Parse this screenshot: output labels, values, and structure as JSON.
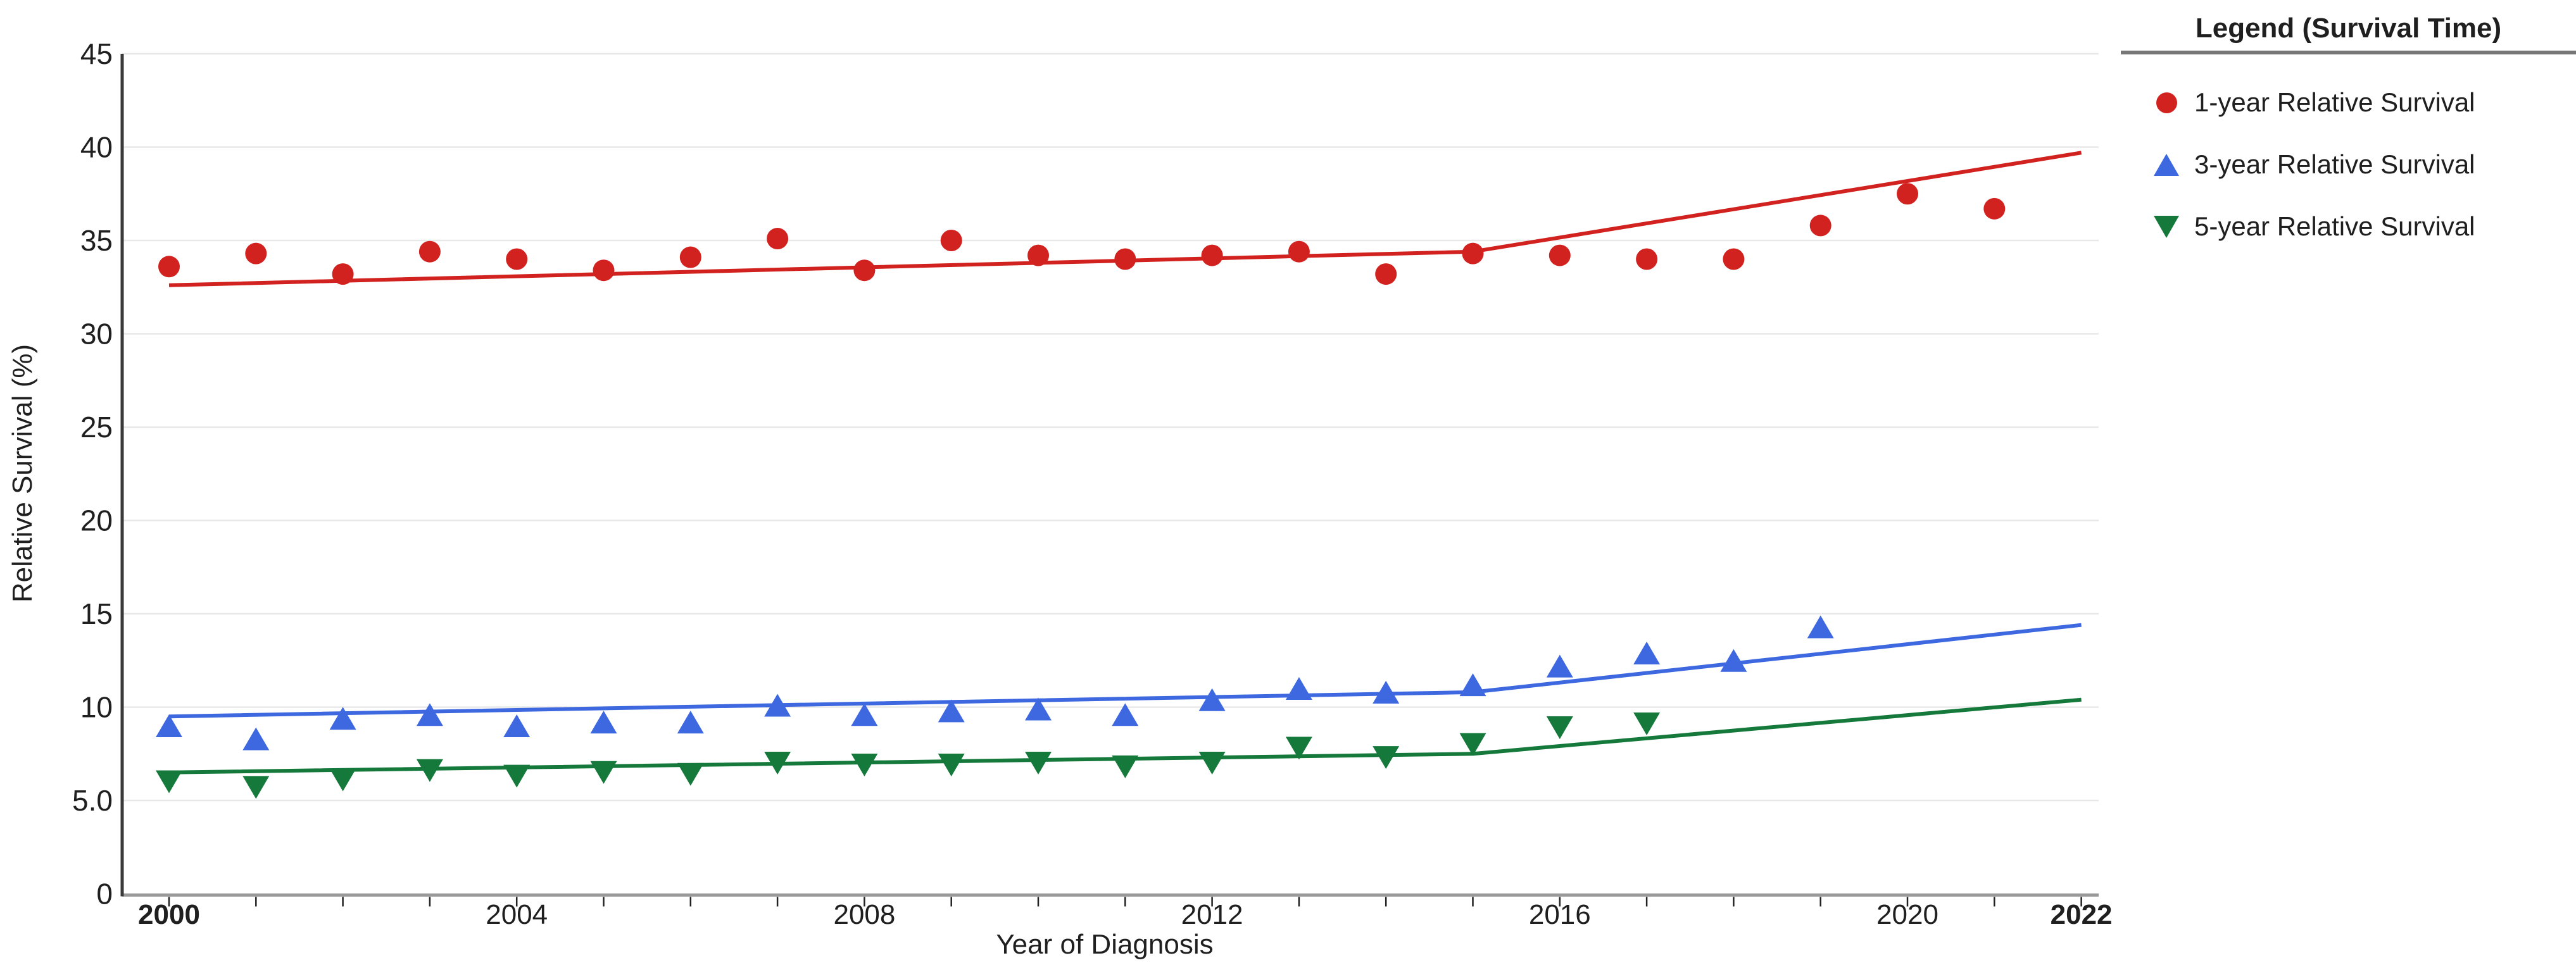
{
  "axes": {
    "x_title": "Year of Diagnosis",
    "y_title": "Relative Survival (%)"
  },
  "legend": {
    "title": "Legend (Survival Time)",
    "items": [
      {
        "label": "1-year Relative Survival",
        "marker": "circle",
        "color": "#d2221f"
      },
      {
        "label": "3-year Relative Survival",
        "marker": "triangle-up",
        "color": "#3e68e0"
      },
      {
        "label": "5-year Relative Survival",
        "marker": "triangle-down",
        "color": "#15793b"
      }
    ]
  },
  "colors": {
    "red": "#d2221f",
    "blue": "#3e68e0",
    "green": "#15793b",
    "gridline": "#e8e8e8",
    "y_axis_line": "#3a3a3a",
    "x_axis_line": "#999999",
    "tick": "#222222",
    "text": "#1f1f1f",
    "legend_divider": "#777777"
  },
  "chart_data": {
    "type": "scatter",
    "title": "",
    "xlabel": "Year of Diagnosis",
    "ylabel": "Relative Survival (%)",
    "xlim": [
      2000,
      2022
    ],
    "ylim": [
      0,
      45
    ],
    "grid": "horizontal",
    "legend_position": "right",
    "y_ticks": [
      {
        "value": 45,
        "label": "45"
      },
      {
        "value": 40,
        "label": "40"
      },
      {
        "value": 35,
        "label": "35"
      },
      {
        "value": 30,
        "label": "30"
      },
      {
        "value": 25,
        "label": "25"
      },
      {
        "value": 20,
        "label": "20"
      },
      {
        "value": 15,
        "label": "15"
      },
      {
        "value": 10,
        "label": "10"
      },
      {
        "value": 5,
        "label": "5.0"
      },
      {
        "value": 0,
        "label": "0"
      }
    ],
    "x_tick_labels": [
      {
        "year": 2000,
        "label": "2000",
        "bold": true
      },
      {
        "year": 2004,
        "label": "2004",
        "bold": false
      },
      {
        "year": 2008,
        "label": "2008",
        "bold": false
      },
      {
        "year": 2012,
        "label": "2012",
        "bold": false
      },
      {
        "year": 2016,
        "label": "2016",
        "bold": false
      },
      {
        "year": 2020,
        "label": "2020",
        "bold": false
      },
      {
        "year": 2022,
        "label": "2022",
        "bold": true
      }
    ],
    "series": [
      {
        "name": "1-year Relative Survival",
        "marker": "circle",
        "color": "#d2221f",
        "years": [
          2000,
          2001,
          2002,
          2003,
          2004,
          2005,
          2006,
          2007,
          2008,
          2009,
          2010,
          2011,
          2012,
          2013,
          2014,
          2015,
          2016,
          2017,
          2018,
          2019,
          2020,
          2021
        ],
        "values": [
          33.6,
          34.3,
          33.2,
          34.4,
          34.0,
          33.4,
          34.1,
          35.1,
          33.4,
          35.0,
          34.2,
          34.0,
          34.2,
          34.4,
          33.2,
          34.3,
          34.2,
          34.0,
          34.0,
          35.8,
          37.5,
          36.7
        ]
      },
      {
        "name": "3-year Relative Survival",
        "marker": "triangle-up",
        "color": "#3e68e0",
        "years": [
          2000,
          2001,
          2002,
          2003,
          2004,
          2005,
          2006,
          2007,
          2008,
          2009,
          2010,
          2011,
          2012,
          2013,
          2014,
          2015,
          2016,
          2017,
          2018,
          2019
        ],
        "values": [
          9.0,
          8.3,
          9.4,
          9.6,
          9.0,
          9.2,
          9.2,
          10.1,
          9.6,
          9.8,
          9.9,
          9.6,
          10.4,
          11.0,
          10.8,
          11.2,
          12.2,
          12.9,
          12.5,
          14.3
        ]
      },
      {
        "name": "5-year Relative Survival",
        "marker": "triangle-down",
        "color": "#15793b",
        "years": [
          2000,
          2001,
          2002,
          2003,
          2004,
          2005,
          2006,
          2007,
          2008,
          2009,
          2010,
          2011,
          2012,
          2013,
          2014,
          2015,
          2016,
          2017
        ],
        "values": [
          6.0,
          5.7,
          6.1,
          6.6,
          6.3,
          6.5,
          6.4,
          7.0,
          6.9,
          6.9,
          7.0,
          6.8,
          7.0,
          7.8,
          7.3,
          8.0,
          8.9,
          9.1
        ]
      }
    ],
    "trend_lines": [
      {
        "series": "1-year Relative Survival",
        "color": "#d2221f",
        "points": [
          [
            2000,
            32.6
          ],
          [
            2015,
            34.4
          ],
          [
            2022,
            39.7
          ]
        ]
      },
      {
        "series": "3-year Relative Survival",
        "color": "#3e68e0",
        "points": [
          [
            2000,
            9.5
          ],
          [
            2015,
            10.8
          ],
          [
            2022,
            14.4
          ]
        ]
      },
      {
        "series": "5-year Relative Survival",
        "color": "#15793b",
        "points": [
          [
            2000,
            6.5
          ],
          [
            2015,
            7.5
          ],
          [
            2022,
            10.4
          ]
        ]
      }
    ]
  }
}
